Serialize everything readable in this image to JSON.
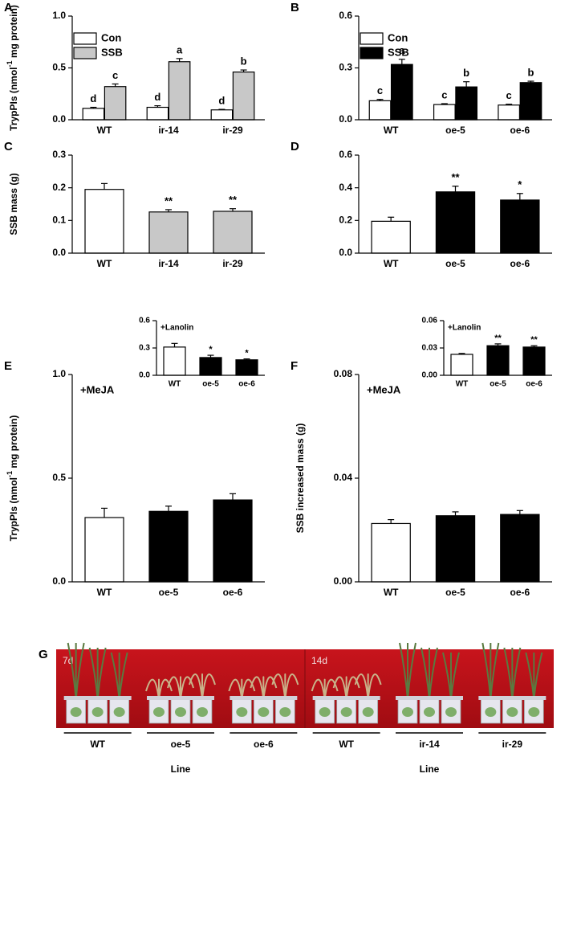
{
  "chart_data": [
    {
      "type": "bar",
      "panel": "A",
      "ylabel": [
        "TrypPIs (nmol",
        "-1",
        " mg protein)"
      ],
      "categories": [
        "WT",
        "ir-14",
        "ir-29"
      ],
      "series": [
        {
          "name": "Con",
          "color": "#ffffff",
          "values": [
            0.11,
            0.12,
            0.095
          ],
          "errors": [
            0.01,
            0.015,
            0.005
          ],
          "labels": [
            "d",
            "d",
            "d"
          ]
        },
        {
          "name": "SSB",
          "color": "#c8c8c8",
          "values": [
            0.32,
            0.56,
            0.46
          ],
          "errors": [
            0.025,
            0.03,
            0.02
          ],
          "labels": [
            "c",
            "a",
            "b"
          ]
        }
      ],
      "ylim": [
        0,
        1.0
      ],
      "yticks": [
        {
          "value": 0,
          "label": "0.0"
        },
        0.5,
        {
          "value": 1.0,
          "label": "1.0"
        }
      ],
      "legend": "upper left"
    },
    {
      "type": "bar",
      "panel": "B",
      "categories": [
        "WT",
        "oe-5",
        "oe-6"
      ],
      "series": [
        {
          "name": "Con",
          "color": "#ffffff",
          "values": [
            0.11,
            0.088,
            0.085
          ],
          "errors": [
            0.008,
            0.005,
            0.005
          ],
          "labels": [
            "c",
            "c",
            "c"
          ]
        },
        {
          "name": "SSB",
          "color": "#000000",
          "values": [
            0.32,
            0.19,
            0.215
          ],
          "errors": [
            0.03,
            0.03,
            0.008
          ],
          "labels": [
            "a",
            "b",
            "b"
          ]
        }
      ],
      "ylim": [
        0,
        0.6
      ],
      "yticks": [
        {
          "value": 0,
          "label": "0.0"
        },
        0.3,
        0.6
      ],
      "legend": "upper left"
    },
    {
      "type": "bar",
      "panel": "C",
      "ylabel": [
        "SSB mass (g)"
      ],
      "categories": [
        "WT",
        "ir-14",
        "ir-29"
      ],
      "series": [
        {
          "colors": [
            "#ffffff",
            "#c8c8c8",
            "#c8c8c8"
          ],
          "values": [
            0.195,
            0.126,
            0.128
          ],
          "errors": [
            0.018,
            0.007,
            0.008
          ],
          "labels": [
            null,
            "**",
            "**"
          ]
        }
      ],
      "ylim": [
        0,
        0.3
      ],
      "yticks": [
        {
          "value": 0,
          "label": "0.0"
        },
        0.1,
        0.2,
        0.3
      ]
    },
    {
      "type": "bar",
      "panel": "D",
      "categories": [
        "WT",
        "oe-5",
        "oe-6"
      ],
      "series": [
        {
          "colors": [
            "#ffffff",
            "#000000",
            "#000000"
          ],
          "values": [
            0.195,
            0.375,
            0.325
          ],
          "errors": [
            0.025,
            0.035,
            0.04
          ],
          "labels": [
            null,
            "**",
            "*"
          ]
        }
      ],
      "ylim": [
        0,
        0.6
      ],
      "yticks": [
        {
          "value": 0,
          "label": "0.0"
        },
        0.2,
        0.4,
        0.6
      ]
    },
    {
      "type": "bar",
      "panel": "E",
      "ylabel": [
        "TrypPIs (nmol",
        "-1",
        " mg protein)"
      ],
      "note": "+MeJA",
      "categories": [
        "WT",
        "oe-5",
        "oe-6"
      ],
      "series": [
        {
          "colors": [
            "#ffffff",
            "#000000",
            "#000000"
          ],
          "values": [
            0.31,
            0.34,
            0.395
          ],
          "errors": [
            0.045,
            0.025,
            0.03
          ],
          "labels": [
            null,
            null,
            null
          ]
        }
      ],
      "ylim": [
        0,
        1.0
      ],
      "yticks": [
        {
          "value": 0,
          "label": "0.0"
        },
        0.5,
        {
          "value": 1.0,
          "label": "1.0"
        }
      ],
      "inset": {
        "type": "bar",
        "note": "+Lanolin",
        "categories": [
          "WT",
          "oe-5",
          "oe-6"
        ],
        "series": [
          {
            "colors": [
              "#ffffff",
              "#000000",
              "#000000"
            ],
            "values": [
              0.31,
              0.195,
              0.17
            ],
            "errors": [
              0.04,
              0.025,
              0.01
            ],
            "labels": [
              null,
              "*",
              "*"
            ]
          }
        ],
        "ylim": [
          0,
          0.6
        ],
        "yticks": [
          {
            "value": 0,
            "label": "0.0"
          },
          0.3,
          0.6
        ]
      }
    },
    {
      "type": "bar",
      "panel": "F",
      "ylabel": [
        "SSB increased mass (g)"
      ],
      "note": "+MeJA",
      "categories": [
        "WT",
        "oe-5",
        "oe-6"
      ],
      "series": [
        {
          "colors": [
            "#ffffff",
            "#000000",
            "#000000"
          ],
          "values": [
            0.0225,
            0.0255,
            0.026
          ],
          "errors": [
            0.0015,
            0.0015,
            0.0015
          ],
          "labels": [
            null,
            null,
            null
          ]
        }
      ],
      "ylim": [
        0,
        0.08
      ],
      "yticks": [
        {
          "value": 0,
          "label": "0.00"
        },
        0.04,
        0.08
      ],
      "inset": {
        "type": "bar",
        "note": "+Lanolin",
        "categories": [
          "WT",
          "oe-5",
          "oe-6"
        ],
        "series": [
          {
            "colors": [
              "#ffffff",
              "#000000",
              "#000000"
            ],
            "values": [
              0.023,
              0.0325,
              0.031
            ],
            "errors": [
              0.001,
              0.002,
              0.0015
            ],
            "labels": [
              null,
              "**",
              "**"
            ]
          }
        ],
        "ylim": [
          0,
          0.06
        ],
        "yticks": [
          {
            "value": 0,
            "label": "0.00"
          },
          0.03,
          0.06
        ]
      }
    }
  ],
  "photo": {
    "panel": "G",
    "halves": [
      {
        "tag": "7d",
        "groups": [
          "WT",
          "oe-5",
          "oe-6"
        ],
        "xlabel": "Line"
      },
      {
        "tag": "14d",
        "groups": [
          "WT",
          "ir-14",
          "ir-29"
        ],
        "xlabel": "Line"
      }
    ]
  }
}
